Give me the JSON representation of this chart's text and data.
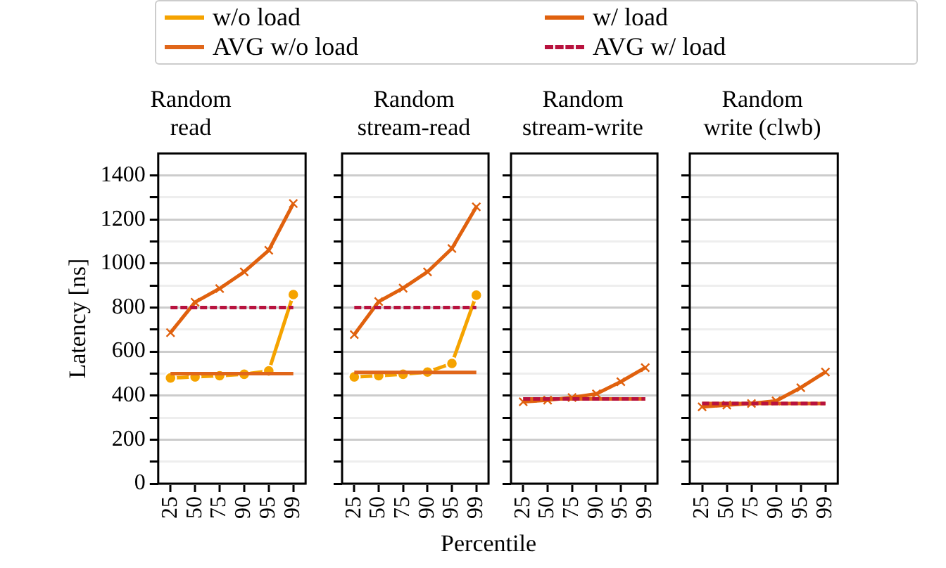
{
  "chart_data": [
    {
      "type": "line",
      "title": "Random read",
      "ylabel": "Latency [ns]",
      "categories": [
        "25",
        "50",
        "75",
        "90",
        "95",
        "99"
      ],
      "legend": "top",
      "grid": "y",
      "ylim": [
        0,
        1500
      ],
      "yticks": [
        0,
        {
          "value": 100,
          "label": null
        },
        200,
        {
          "value": 300,
          "label": null
        },
        400,
        {
          "value": 500,
          "label": null
        },
        600,
        {
          "value": 700,
          "label": null
        },
        800,
        {
          "value": 900,
          "label": null
        },
        1000,
        {
          "value": 1100,
          "label": null
        },
        1200,
        {
          "value": 1300,
          "label": null
        },
        1400
      ],
      "series": [
        {
          "name": "w/o load",
          "color": "#f5a300",
          "marker": "circle",
          "values": [
            480,
            485,
            490,
            497,
            512,
            859
          ]
        },
        {
          "name": "w/ load",
          "color": "#e0610e",
          "marker": "cross",
          "values": [
            686,
            824,
            886,
            962,
            1060,
            1272
          ]
        },
        {
          "name": "AVG w/o load",
          "color": "#e0661a",
          "marker": "none",
          "values": [
            500,
            500,
            500,
            500,
            500,
            500
          ]
        },
        {
          "name": "AVG w/ load",
          "color": "#b8123e",
          "marker": "none",
          "line_style": "dashed",
          "values": [
            800,
            800,
            800,
            800,
            800,
            800
          ]
        }
      ]
    },
    {
      "type": "line",
      "title": "Random stream-read",
      "xlabel": "Percentile",
      "categories": [
        "25",
        "50",
        "75",
        "90",
        "95",
        "99"
      ],
      "tick_labels": "x",
      "legend": false,
      "grid": "y",
      "ylim": [
        0,
        1500
      ],
      "yticks": [
        0,
        {
          "value": 100,
          "label": null
        },
        200,
        {
          "value": 300,
          "label": null
        },
        400,
        {
          "value": 500,
          "label": null
        },
        600,
        {
          "value": 700,
          "label": null
        },
        800,
        {
          "value": 900,
          "label": null
        },
        1000,
        {
          "value": 1100,
          "label": null
        },
        1200,
        {
          "value": 1300,
          "label": null
        },
        1400
      ],
      "series": [
        {
          "color": "#f5a300",
          "marker": "circle",
          "values": [
            485,
            490,
            497,
            507,
            546,
            856
          ]
        },
        {
          "color": "#e0610e",
          "marker": "cross",
          "values": [
            677,
            827,
            888,
            962,
            1068,
            1257
          ]
        },
        {
          "color": "#e0661a",
          "marker": "none",
          "values": [
            505,
            505,
            505,
            505,
            505,
            505
          ]
        },
        {
          "color": "#b8123e",
          "marker": "none",
          "line_style": "dashed",
          "values": [
            800,
            800,
            800,
            800,
            800,
            800
          ]
        }
      ]
    },
    {
      "type": "line",
      "title": "Random stream-write",
      "categories": [
        "25",
        "50",
        "75",
        "90",
        "95",
        "99"
      ],
      "tick_labels": "x",
      "legend": false,
      "grid": "y",
      "ylim": [
        0,
        1500
      ],
      "yticks": [
        0,
        {
          "value": 100,
          "label": null
        },
        200,
        {
          "value": 300,
          "label": null
        },
        400,
        {
          "value": 500,
          "label": null
        },
        600,
        {
          "value": 700,
          "label": null
        },
        800,
        {
          "value": 900,
          "label": null
        },
        1000,
        {
          "value": 1100,
          "label": null
        },
        1200,
        {
          "value": 1300,
          "label": null
        },
        1400
      ],
      "series": [
        {
          "color": "#e0661a",
          "marker": "none",
          "values": [
            385,
            385,
            385,
            385,
            385,
            385
          ]
        },
        {
          "color": "#e0610e",
          "marker": "cross",
          "values": [
            372,
            379,
            391,
            408,
            463,
            527
          ]
        },
        {
          "color": "#b8123e",
          "marker": "none",
          "line_style": "dashed",
          "values": [
            385,
            385,
            385,
            385,
            385,
            385
          ]
        }
      ]
    },
    {
      "type": "line",
      "title": "Random write (clwb)",
      "categories": [
        "25",
        "50",
        "75",
        "90",
        "95",
        "99"
      ],
      "tick_labels": "x",
      "legend": false,
      "grid": "y",
      "ylim": [
        0,
        1500
      ],
      "yticks": [
        0,
        {
          "value": 100,
          "label": null
        },
        200,
        {
          "value": 300,
          "label": null
        },
        400,
        {
          "value": 500,
          "label": null
        },
        600,
        {
          "value": 700,
          "label": null
        },
        800,
        {
          "value": 900,
          "label": null
        },
        1000,
        {
          "value": 1100,
          "label": null
        },
        1200,
        {
          "value": 1300,
          "label": null
        },
        1400
      ],
      "series": [
        {
          "color": "#e0661a",
          "marker": "none",
          "values": [
            364,
            364,
            364,
            364,
            364,
            364
          ]
        },
        {
          "color": "#e0610e",
          "marker": "cross",
          "values": [
            349,
            357,
            364,
            376,
            436,
            507
          ]
        },
        {
          "color": "#b8123e",
          "marker": "none",
          "line_style": "dashed",
          "values": [
            364,
            364,
            364,
            364,
            364,
            364
          ]
        }
      ]
    }
  ]
}
